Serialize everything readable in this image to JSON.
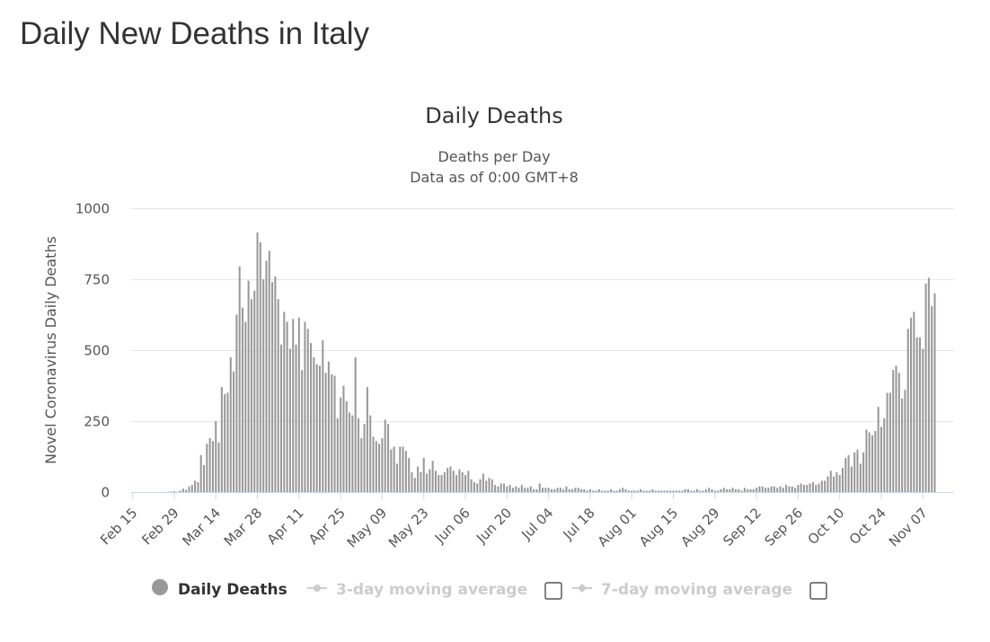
{
  "page": {
    "title": "Daily New Deaths in Italy"
  },
  "chart_data": {
    "type": "bar",
    "title": "Daily Deaths",
    "subtitle_lines": [
      "Deaths per Day",
      "Data as of 0:00 GMT+8"
    ],
    "ylabel": "Novel Coronavirus Daily Deaths",
    "xlabel": "",
    "ylim": [
      0,
      1000
    ],
    "yticks": [
      0,
      250,
      500,
      750,
      1000
    ],
    "x_start": "2020-02-15",
    "x_end": "2020-11-17",
    "xticks": [
      "Feb 15",
      "Feb 29",
      "Mar 14",
      "Mar 28",
      "Apr 11",
      "Apr 25",
      "May 09",
      "May 23",
      "Jun 06",
      "Jun 20",
      "Jul 04",
      "Jul 18",
      "Aug 01",
      "Aug 15",
      "Aug 29",
      "Sep 12",
      "Sep 26",
      "Oct 10",
      "Oct 24",
      "Nov 07"
    ],
    "grid": true,
    "color": "#999999",
    "series": [
      {
        "name": "Daily Deaths",
        "values": [
          0,
          0,
          0,
          0,
          0,
          0,
          0,
          0,
          0,
          0,
          0,
          0,
          1,
          2,
          3,
          1,
          5,
          12,
          8,
          20,
          25,
          40,
          35,
          130,
          95,
          170,
          190,
          180,
          250,
          175,
          370,
          345,
          350,
          475,
          425,
          625,
          795,
          650,
          600,
          745,
          680,
          710,
          915,
          880,
          750,
          815,
          850,
          740,
          760,
          680,
          520,
          635,
          600,
          505,
          610,
          520,
          615,
          430,
          600,
          575,
          525,
          475,
          450,
          445,
          535,
          420,
          460,
          415,
          410,
          260,
          333,
          375,
          320,
          280,
          270,
          475,
          260,
          190,
          240,
          370,
          270,
          195,
          180,
          170,
          190,
          255,
          240,
          150,
          160,
          100,
          160,
          160,
          145,
          120,
          70,
          50,
          90,
          70,
          120,
          65,
          80,
          110,
          75,
          60,
          60,
          70,
          85,
          90,
          75,
          60,
          80,
          70,
          60,
          75,
          45,
          35,
          30,
          45,
          65,
          40,
          50,
          45,
          25,
          20,
          30,
          30,
          20,
          25,
          15,
          20,
          15,
          25,
          15,
          15,
          20,
          10,
          10,
          30,
          15,
          15,
          15,
          10,
          10,
          15,
          15,
          10,
          20,
          10,
          10,
          15,
          15,
          10,
          10,
          5,
          10,
          5,
          5,
          10,
          5,
          5,
          5,
          10,
          5,
          5,
          10,
          15,
          10,
          5,
          5,
          5,
          5,
          10,
          5,
          5,
          5,
          10,
          5,
          5,
          5,
          5,
          5,
          5,
          5,
          5,
          5,
          5,
          10,
          10,
          5,
          5,
          10,
          5,
          5,
          10,
          15,
          10,
          5,
          5,
          10,
          15,
          10,
          10,
          15,
          10,
          10,
          5,
          15,
          10,
          10,
          10,
          15,
          20,
          20,
          15,
          15,
          20,
          20,
          15,
          20,
          15,
          25,
          20,
          20,
          15,
          25,
          30,
          25,
          25,
          30,
          35,
          25,
          30,
          40,
          40,
          55,
          75,
          55,
          70,
          60,
          85,
          120,
          130,
          90,
          140,
          150,
          100,
          140,
          220,
          210,
          200,
          215,
          300,
          230,
          260,
          350,
          350,
          430,
          445,
          420,
          330,
          360,
          575,
          615,
          635,
          545,
          545,
          505,
          735,
          755,
          655,
          700
        ]
      },
      {
        "name": "3-day moving average"
      },
      {
        "name": "7-day moving average"
      }
    ],
    "legend_placement": "bottom"
  },
  "legend": {
    "items": [
      {
        "label": "Daily Deaths",
        "color": "#999999",
        "active": true,
        "has_checkbox": false
      },
      {
        "label": "3-day moving average",
        "color": "#cccccc",
        "active": false,
        "has_checkbox": true
      },
      {
        "label": "7-day moving average",
        "color": "#cccccc",
        "active": false,
        "has_checkbox": true
      }
    ]
  }
}
